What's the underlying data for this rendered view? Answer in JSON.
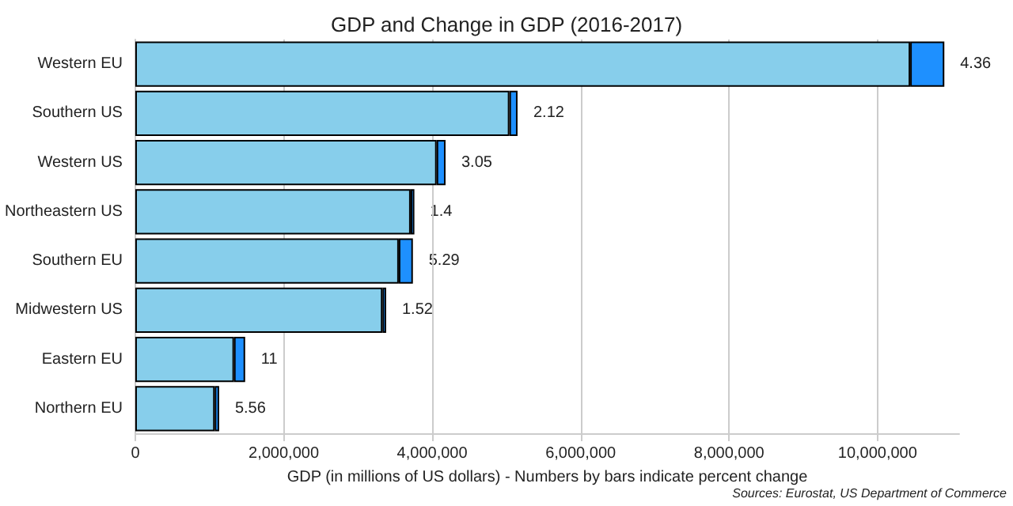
{
  "chart_data": {
    "type": "bar",
    "orientation": "horizontal",
    "stacked": true,
    "title": "GDP and Change in GDP (2016-2017)",
    "xlabel": "GDP (in millions of US dollars) - Numbers by bars indicate percent change",
    "annotations": [
      "Sources: Eurostat, US Department of Commerce",
      {
        "text": "4.36",
        "x": 10900000,
        "y": "Western EU"
      },
      {
        "text": "2.12",
        "x": 5150000,
        "y": "Southern US"
      },
      {
        "text": "3.05",
        "x": 4180000,
        "y": "Western US"
      },
      {
        "text": "1.4",
        "x": 3760000,
        "y": "Northeastern US"
      },
      {
        "text": "5.29",
        "x": 3740000,
        "y": "Southern EU"
      },
      {
        "text": "1.52",
        "x": 3380000,
        "y": "Midwestern US"
      },
      {
        "text": "11",
        "x": 1480000,
        "y": "Eastern EU"
      },
      {
        "text": "5.56",
        "x": 1130000,
        "y": "Northern EU"
      }
    ],
    "categories": [
      "Western EU",
      "Southern US",
      "Western US",
      "Northeastern US",
      "Southern EU",
      "Midwestern US",
      "Eastern EU",
      "Northern EU"
    ],
    "series": [
      {
        "color": "#87ceeb",
        "values": [
          10440000,
          5040000,
          4060000,
          3710000,
          3550000,
          3330000,
          1330000,
          1070000
        ]
      },
      {
        "color": "#1e90ff",
        "values": [
          460000,
          110000,
          120000,
          50000,
          190000,
          50000,
          150000,
          60000
        ]
      }
    ],
    "xlim": [
      0,
      11100000
    ],
    "xticks": [
      0,
      {
        "value": 2000000,
        "label": "2,000,000"
      },
      {
        "value": 4000000,
        "label": "4,000,000"
      },
      {
        "value": 6000000,
        "label": "6,000,000"
      },
      {
        "value": 8000000,
        "label": "8,000,000"
      },
      {
        "value": 10000000,
        "label": "10,000,000"
      }
    ],
    "grid": "x"
  }
}
